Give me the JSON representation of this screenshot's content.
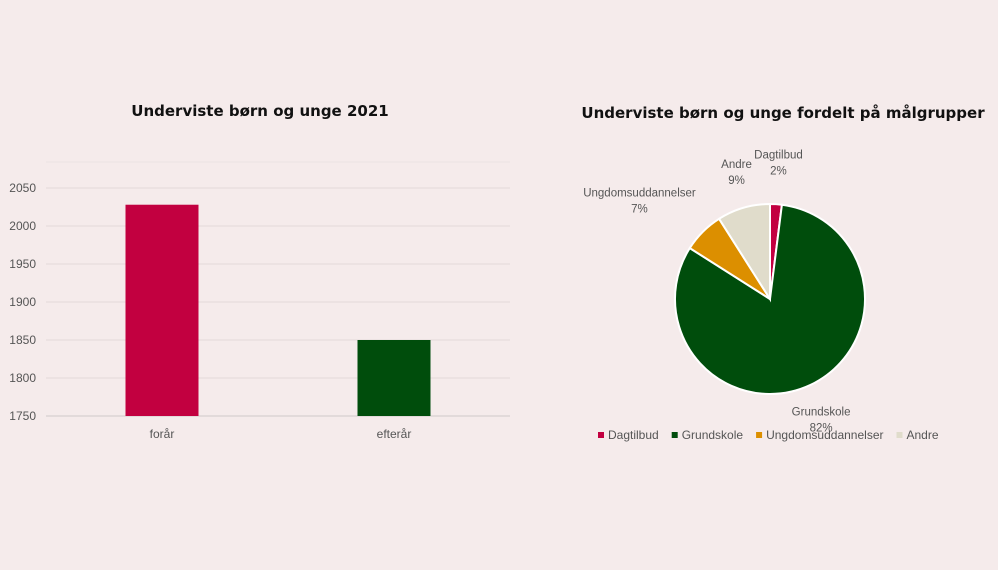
{
  "chart_data": [
    {
      "type": "bar",
      "title": "Underviste børn og unge 2021",
      "categories": [
        "forår",
        "efterår"
      ],
      "values": [
        2028,
        1850
      ],
      "colors": [
        "#c20040",
        "#004d0c"
      ],
      "ylim": [
        1750,
        2050
      ],
      "yticks": [
        1750,
        1800,
        1850,
        1900,
        1950,
        2000,
        2050
      ],
      "grid": true
    },
    {
      "type": "pie",
      "title": "Underviste børn og unge fordelt på målgrupper",
      "slices": [
        {
          "label": "Dagtilbud",
          "value": 2,
          "display": "2%",
          "color": "#c20040"
        },
        {
          "label": "Grundskole",
          "value": 82,
          "display": "82%",
          "color": "#004d0c"
        },
        {
          "label": "Ungdomsuddannelser",
          "value": 7,
          "display": "7%",
          "color": "#dc8f00"
        },
        {
          "label": "Andre",
          "value": 9,
          "display": "9%",
          "color": "#e0dccb"
        }
      ],
      "legend": "bottom"
    }
  ]
}
